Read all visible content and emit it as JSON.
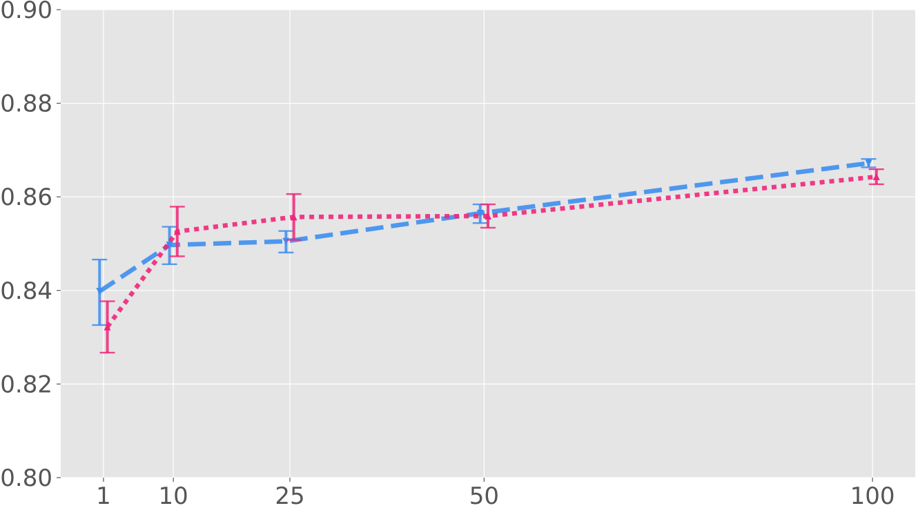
{
  "chart_data": {
    "type": "line",
    "title": "",
    "xlabel": "",
    "ylabel": "",
    "x_ticks": [
      1,
      10,
      25,
      50,
      100
    ],
    "x_tick_labels": [
      "1",
      "10",
      "25",
      "50",
      "100"
    ],
    "xlim": [
      -4.5,
      105.5
    ],
    "y_ticks": [
      0.8,
      0.82,
      0.84,
      0.86,
      0.88,
      0.9
    ],
    "y_tick_labels": [
      "0.80",
      "0.82",
      "0.84",
      "0.86",
      "0.88",
      "0.90"
    ],
    "ylim": [
      0.8,
      0.9
    ],
    "grid": true,
    "background_color": "#e5e5e5",
    "grid_color": "#ffffff",
    "series": [
      {
        "color": "#3d8ef0",
        "line_style": "dashed",
        "marker": "triangle-down",
        "x_offset": -0.5,
        "points": [
          {
            "x": 1,
            "y": 0.8398,
            "err_low": 0.0072,
            "err_high": 0.0068
          },
          {
            "x": 10,
            "y": 0.8497,
            "err_low": 0.0041,
            "err_high": 0.0039
          },
          {
            "x": 25,
            "y": 0.8505,
            "err_low": 0.0024,
            "err_high": 0.0022
          },
          {
            "x": 50,
            "y": 0.8565,
            "err_low": 0.0021,
            "err_high": 0.0019
          },
          {
            "x": 100,
            "y": 0.8672,
            "err_low": 0.0009,
            "err_high": 0.0009
          }
        ]
      },
      {
        "color": "#f0267a",
        "line_style": "dotted",
        "marker": "triangle-up",
        "x_offset": 0.5,
        "points": [
          {
            "x": 1,
            "y": 0.8322,
            "err_low": 0.0055,
            "err_high": 0.0055
          },
          {
            "x": 10,
            "y": 0.8526,
            "err_low": 0.0053,
            "err_high": 0.0053
          },
          {
            "x": 25,
            "y": 0.8557,
            "err_low": 0.0049,
            "err_high": 0.0049
          },
          {
            "x": 50,
            "y": 0.8559,
            "err_low": 0.0025,
            "err_high": 0.0025
          },
          {
            "x": 100,
            "y": 0.8643,
            "err_low": 0.0016,
            "err_high": 0.0016
          }
        ]
      }
    ]
  }
}
